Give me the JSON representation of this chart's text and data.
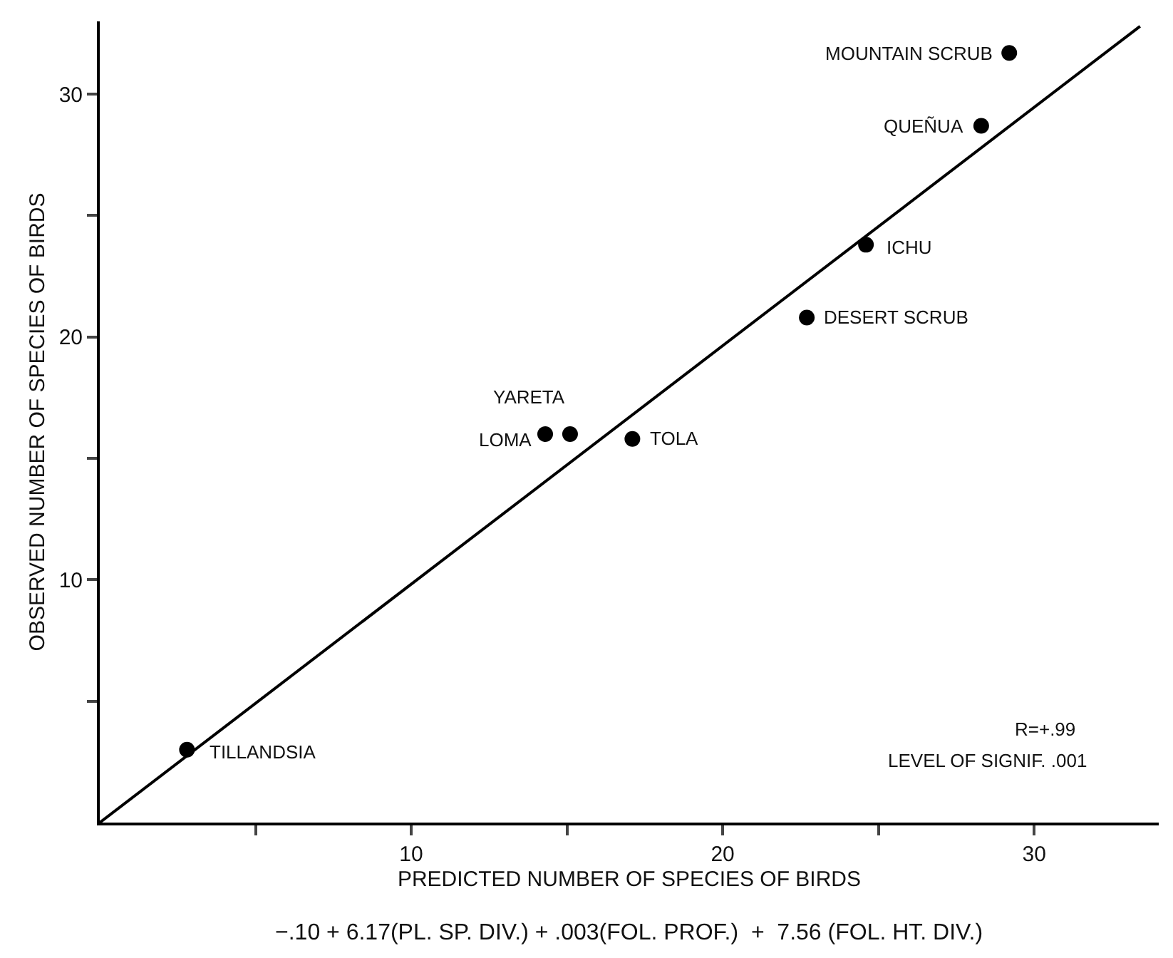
{
  "chart_data": {
    "type": "scatter",
    "xlabel": "PREDICTED NUMBER OF SPECIES OF BIRDS",
    "ylabel": "OBSERVED NUMBER OF SPECIES OF BIRDS",
    "xlim": [
      0,
      34
    ],
    "ylim": [
      0,
      33
    ],
    "xticks": [
      {
        "value": 5,
        "label": null
      },
      10,
      {
        "value": 15,
        "label": null
      },
      20,
      {
        "value": 25,
        "label": null
      },
      30
    ],
    "yticks": [
      {
        "value": 5,
        "label": null
      },
      10,
      {
        "value": 15,
        "label": null
      },
      20,
      {
        "value": 25,
        "label": null
      },
      30
    ],
    "marker": "circle",
    "grid": false,
    "series": [
      {
        "color": "#000000",
        "x": [
          29.2,
          28.3,
          24.6,
          22.7,
          17.1,
          14.3,
          15.1,
          2.8
        ],
        "values": [
          31.7,
          28.7,
          23.8,
          20.8,
          15.8,
          16.0,
          16.0,
          3.0
        ]
      },
      {
        "type": "line",
        "color": "#000000",
        "line_style": "solid",
        "marker": "none",
        "x": [
          0,
          33.4
        ],
        "values": [
          0,
          32.8
        ]
      }
    ],
    "annotations": [
      {
        "text": "MOUNTAIN SCRUB",
        "x": 29.2,
        "y": 31.7
      },
      {
        "text": "QUEÑUA",
        "x": 28.3,
        "y": 28.7
      },
      {
        "text": "ICHU",
        "x": 24.6,
        "y": 23.8
      },
      {
        "text": "DESERT SCRUB",
        "x": 22.7,
        "y": 20.8
      },
      {
        "text": "TOLA",
        "x": 17.1,
        "y": 15.8
      },
      {
        "text": "LOMA",
        "x": 14.3,
        "y": 16.0
      },
      {
        "text": "YARETA",
        "x": 15.1,
        "y": 16.0
      },
      {
        "text": "TILLANDSIA",
        "x": 2.8,
        "y": 3.0
      },
      "R=+.99",
      "LEVEL OF SIGNIF. .001",
      "−.10 + 6.17(PL. SP. DIV.) + .003(FOL. PROF.)  +  7.56 (FOL. HT. DIV.)"
    ]
  }
}
